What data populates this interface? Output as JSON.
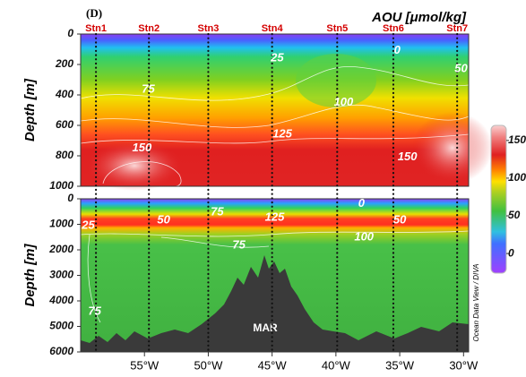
{
  "chart_data": {
    "type": "section",
    "panel_label": "(D)",
    "title": "AOU [μmol/kg]",
    "watermark": "Ocean Data View / DIVA",
    "ridge_label": "MAR",
    "xlim": [
      -60,
      -29.6
    ],
    "xticks": [
      {
        "value": -55,
        "label": "55°W"
      },
      {
        "value": -50,
        "label": "50°W"
      },
      {
        "value": -45,
        "label": "45°W"
      },
      {
        "value": -40,
        "label": "40°W"
      },
      {
        "value": -35,
        "label": "35°W"
      },
      {
        "value": -30,
        "label": "30°W"
      }
    ],
    "stations": {
      "names": [
        "Stn1",
        "Stn2",
        "Stn3",
        "Stn4",
        "Stn5",
        "Stn6",
        "Stn7"
      ],
      "x": [
        -58.8,
        -54.65,
        -50,
        -45,
        -39.9,
        -35.5,
        -30.5
      ],
      "color": "#d40000"
    },
    "panels": [
      {
        "y_label": "Depth [m]",
        "ylim": [
          0,
          1000
        ],
        "y_inverted": true,
        "yticks": [
          0,
          200,
          400,
          600,
          800,
          1000
        ],
        "contour_labels": [
          {
            "value": 25,
            "x": -44.6,
            "depth": 160
          },
          {
            "value": 0,
            "x": -35.2,
            "depth": 110
          },
          {
            "value": 50,
            "x": -30.2,
            "depth": 230
          },
          {
            "value": 75,
            "x": -54.7,
            "depth": 365
          },
          {
            "value": 100,
            "x": -39.4,
            "depth": 450
          },
          {
            "value": 125,
            "x": -44.2,
            "depth": 660
          },
          {
            "value": 150,
            "x": -55.2,
            "depth": 750
          },
          {
            "value": 150,
            "x": -34.4,
            "depth": 810
          }
        ]
      },
      {
        "y_label": "Depth [m]",
        "ylim": [
          0,
          6000
        ],
        "y_inverted": true,
        "yticks": [
          0,
          1000,
          2000,
          3000,
          4000,
          5000,
          6000
        ],
        "contour_labels": [
          {
            "value": 0,
            "x": -38.0,
            "depth": 200
          },
          {
            "value": 75,
            "x": -49.3,
            "depth": 530
          },
          {
            "value": 50,
            "x": -53.5,
            "depth": 840
          },
          {
            "value": 125,
            "x": -44.8,
            "depth": 740
          },
          {
            "value": 25,
            "x": -59.4,
            "depth": 1050
          },
          {
            "value": 50,
            "x": -35.0,
            "depth": 840
          },
          {
            "value": 100,
            "x": -37.8,
            "depth": 1510
          },
          {
            "value": 75,
            "x": -47.6,
            "depth": 1820
          },
          {
            "value": 75,
            "x": -58.9,
            "depth": 4420
          }
        ]
      }
    ],
    "colorbar": {
      "lim": [
        -26,
        170
      ],
      "ticks": [
        0,
        50,
        100,
        150
      ]
    }
  }
}
